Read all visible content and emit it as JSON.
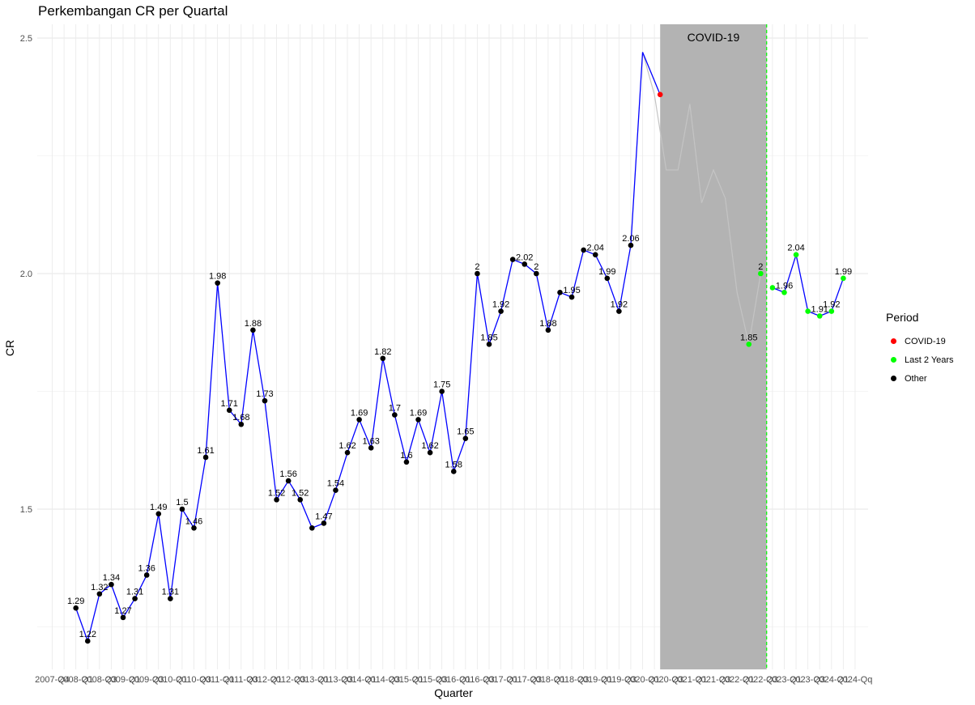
{
  "chart_data": {
    "type": "line",
    "title": "Perkembangan CR per Quartal",
    "xlabel": "Quarter",
    "ylabel": "CR",
    "ylim": [
      1.2,
      2.5
    ],
    "y_ticks": [
      "1.5",
      "2.0",
      "2.5"
    ],
    "x_tick_labels": [
      "2007-Q4",
      "2008-Q1",
      "2008-Q3",
      "2009-Q1",
      "2009-Q3",
      "2010-Q1",
      "2010-Q3",
      "2011-Q1",
      "2011-Q3",
      "2012-Q1",
      "2012-Q3",
      "2013-Q1",
      "2013-Q3",
      "2014-Q1",
      "2014-Q3",
      "2015-Q1",
      "2015-Q3",
      "2016-Q1",
      "2016-Q3",
      "2017-Q1",
      "2017-Q3",
      "2018-Q1",
      "2018-Q3",
      "2019-Q1",
      "2019-Q3",
      "2020-Q1",
      "2020-Q3",
      "2021-Q1",
      "2021-Q3",
      "2022-Q1",
      "2022-Q3",
      "2023-Q1",
      "2023-Q3",
      "2024-Q1",
      "2024-Qq"
    ],
    "grid": true,
    "legend": {
      "title": "Period",
      "position": "right",
      "entries": [
        {
          "label": "COVID-19",
          "color": "#ff0000"
        },
        {
          "label": "Last 2 Years",
          "color": "#00ff00"
        },
        {
          "label": "Other",
          "color": "#000000"
        }
      ]
    },
    "annotation": "COVID-19",
    "covid_band": {
      "start_index": 50,
      "end_index": 58
    },
    "line_color": "#0000ff",
    "points": [
      {
        "v": 1.29,
        "label": "1.29",
        "period": "Other"
      },
      {
        "v": 1.22,
        "label": "1.22",
        "period": "Other"
      },
      {
        "v": 1.32,
        "label": "1.32",
        "period": "Other"
      },
      {
        "v": 1.34,
        "label": "1.34",
        "period": "Other"
      },
      {
        "v": 1.27,
        "label": "1.27",
        "period": "Other"
      },
      {
        "v": 1.31,
        "label": "1.31",
        "period": "Other"
      },
      {
        "v": 1.36,
        "label": "1.36",
        "period": "Other"
      },
      {
        "v": 1.49,
        "label": "1.49",
        "period": "Other"
      },
      {
        "v": 1.31,
        "label": "1.31",
        "period": "Other"
      },
      {
        "v": 1.5,
        "label": "1.5",
        "period": "Other"
      },
      {
        "v": 1.46,
        "label": "1.46",
        "period": "Other"
      },
      {
        "v": 1.61,
        "label": "1.61",
        "period": "Other"
      },
      {
        "v": 1.98,
        "label": "1.98",
        "period": "Other"
      },
      {
        "v": 1.71,
        "label": "1.71",
        "period": "Other"
      },
      {
        "v": 1.68,
        "label": "1.68",
        "period": "Other"
      },
      {
        "v": 1.88,
        "label": "1.88",
        "period": "Other"
      },
      {
        "v": 1.73,
        "label": "1.73",
        "period": "Other"
      },
      {
        "v": 1.52,
        "label": "1.52",
        "period": "Other"
      },
      {
        "v": 1.56,
        "label": "1.56",
        "period": "Other"
      },
      {
        "v": 1.52,
        "label": "1.52",
        "period": "Other"
      },
      {
        "v": 1.46,
        "label": "",
        "period": "Other"
      },
      {
        "v": 1.47,
        "label": "1.47",
        "period": "Other"
      },
      {
        "v": 1.54,
        "label": "1.54",
        "period": "Other"
      },
      {
        "v": 1.62,
        "label": "1.62",
        "period": "Other"
      },
      {
        "v": 1.69,
        "label": "1.69",
        "period": "Other"
      },
      {
        "v": 1.63,
        "label": "1.63",
        "period": "Other"
      },
      {
        "v": 1.82,
        "label": "1.82",
        "period": "Other"
      },
      {
        "v": 1.7,
        "label": "1.7",
        "period": "Other"
      },
      {
        "v": 1.6,
        "label": "1.6",
        "period": "Other"
      },
      {
        "v": 1.69,
        "label": "1.69",
        "period": "Other"
      },
      {
        "v": 1.62,
        "label": "1.62",
        "period": "Other"
      },
      {
        "v": 1.75,
        "label": "1.75",
        "period": "Other"
      },
      {
        "v": 1.58,
        "label": "1.58",
        "period": "Other"
      },
      {
        "v": 1.65,
        "label": "1.65",
        "period": "Other"
      },
      {
        "v": 2.0,
        "label": "2",
        "period": "Other"
      },
      {
        "v": 1.85,
        "label": "1.85",
        "period": "Other"
      },
      {
        "v": 1.92,
        "label": "1.92",
        "period": "Other"
      },
      {
        "v": 2.03,
        "label": "",
        "period": "Other"
      },
      {
        "v": 2.02,
        "label": "2.02",
        "period": "Other"
      },
      {
        "v": 2.0,
        "label": "2",
        "period": "Other"
      },
      {
        "v": 1.88,
        "label": "1.88",
        "period": "Other"
      },
      {
        "v": 1.96,
        "label": "",
        "period": "Other"
      },
      {
        "v": 1.95,
        "label": "1.95",
        "period": "Other"
      },
      {
        "v": 2.05,
        "label": "",
        "period": "Other"
      },
      {
        "v": 2.04,
        "label": "2.04",
        "period": "Other"
      },
      {
        "v": 1.99,
        "label": "1.99",
        "period": "Other"
      },
      {
        "v": 1.92,
        "label": "1.92",
        "period": "Other"
      },
      {
        "v": 2.06,
        "label": "2.06",
        "period": "Other"
      },
      {
        "v": 2.47,
        "label": "2.47",
        "period": "COVID-19"
      },
      {
        "v": 2.38,
        "label": "",
        "period": "COVID-19"
      },
      {
        "v": 2.22,
        "label": "",
        "period": "COVID-19"
      },
      {
        "v": 2.22,
        "label": "",
        "period": "COVID-19"
      },
      {
        "v": 2.36,
        "label": "",
        "period": "COVID-19"
      },
      {
        "v": 2.15,
        "label": "",
        "period": "COVID-19"
      },
      {
        "v": 2.22,
        "label": "",
        "period": "COVID-19"
      },
      {
        "v": 2.16,
        "label": "",
        "period": "COVID-19"
      },
      {
        "v": 1.96,
        "label": "",
        "period": "COVID-19"
      },
      {
        "v": 1.85,
        "label": "1.85",
        "period": "Last 2 Years"
      },
      {
        "v": 2.0,
        "label": "2",
        "period": "Last 2 Years"
      },
      {
        "v": 1.97,
        "label": "",
        "period": "Last 2 Years"
      },
      {
        "v": 1.96,
        "label": "1.96",
        "period": "Last 2 Years"
      },
      {
        "v": 2.04,
        "label": "2.04",
        "period": "Last 2 Years"
      },
      {
        "v": 1.92,
        "label": "",
        "period": "Last 2 Years"
      },
      {
        "v": 1.91,
        "label": "1.91",
        "period": "Last 2 Years"
      },
      {
        "v": 1.92,
        "label": "1.92",
        "period": "Last 2 Years"
      },
      {
        "v": 1.99,
        "label": "1.99",
        "period": "Last 2 Years"
      }
    ]
  }
}
